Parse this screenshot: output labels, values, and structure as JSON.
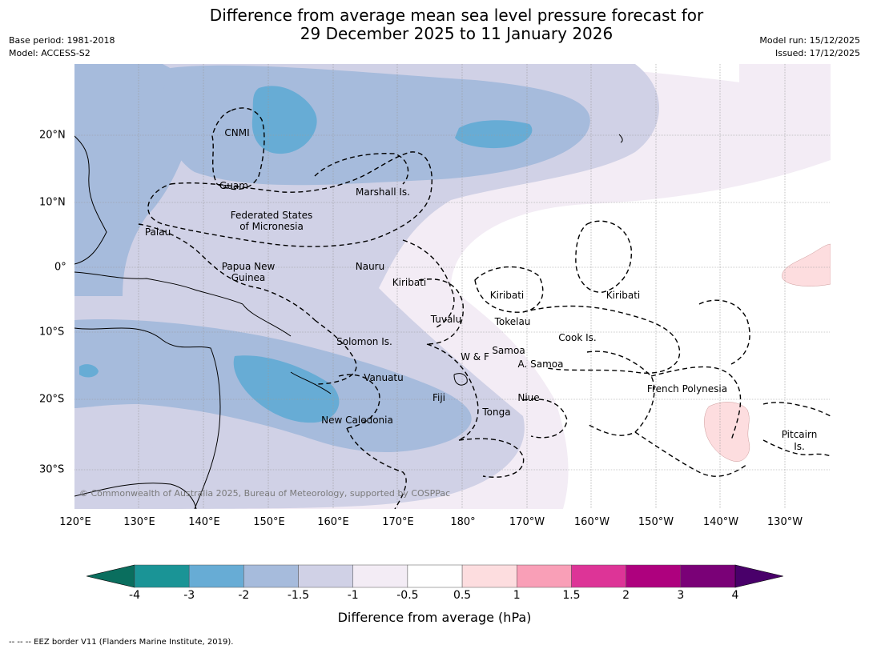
{
  "title": {
    "line1": "Difference from average mean sea level pressure forecast for",
    "line2": "29 December 2025 to 11 January 2026"
  },
  "meta": {
    "base_period": "Base period: 1981-2018",
    "model": "Model: ACCESS-S2",
    "model_run": "Model run: 15/12/2025",
    "issued": "Issued: 17/12/2025"
  },
  "map": {
    "lon_labels": [
      "120°E",
      "130°E",
      "140°E",
      "150°E",
      "160°E",
      "170°E",
      "180°",
      "170°W",
      "160°W",
      "150°W",
      "140°W",
      "130°W"
    ],
    "lat_labels": [
      "20°N",
      "10°N",
      "0°",
      "10°S",
      "20°S",
      "30°S"
    ],
    "regions": [
      {
        "name": "CNMI"
      },
      {
        "name": "Guam"
      },
      {
        "name": "Marshall Is."
      },
      {
        "name": "Federated States"
      },
      {
        "name": "of Micronesia"
      },
      {
        "name": "Palau"
      },
      {
        "name": "Papua New"
      },
      {
        "name": "Guinea"
      },
      {
        "name": "Nauru"
      },
      {
        "name": "Kiribati"
      },
      {
        "name": "Kiribati"
      },
      {
        "name": "Kiribati"
      },
      {
        "name": "Tuvalu"
      },
      {
        "name": "Tokelau"
      },
      {
        "name": "Cook Is."
      },
      {
        "name": "Solomon Is."
      },
      {
        "name": "Samoa"
      },
      {
        "name": "W & F"
      },
      {
        "name": "A. Samoa"
      },
      {
        "name": "Vanuatu"
      },
      {
        "name": "Fiji"
      },
      {
        "name": "Niue"
      },
      {
        "name": "Tonga"
      },
      {
        "name": "New Caledonia"
      },
      {
        "name": "French Polynesia"
      },
      {
        "name": "Pitcairn"
      },
      {
        "name": "Is."
      }
    ],
    "copyright": "© Commonwealth of Australia 2025, Bureau of Meteorology, supported by COSPPac"
  },
  "colorbar": {
    "ticks": [
      "-4",
      "-3",
      "-2",
      "-1.5",
      "-1",
      "-0.5",
      "0.5",
      "1",
      "1.5",
      "2",
      "3",
      "4"
    ],
    "colors": [
      "#0a6e5e",
      "#1a9496",
      "#67acd5",
      "#a6bbdc",
      "#d0d1e6",
      "#f3ecf5",
      "#ffffff",
      "#fddddf",
      "#f99fb7",
      "#dd3497",
      "#ae017e",
      "#7a0177",
      "#49006a"
    ],
    "label": "Difference from average (hPa)"
  },
  "footnote": "--  --  -- EEZ border V11 (Flanders Marine Institute, 2019)."
}
